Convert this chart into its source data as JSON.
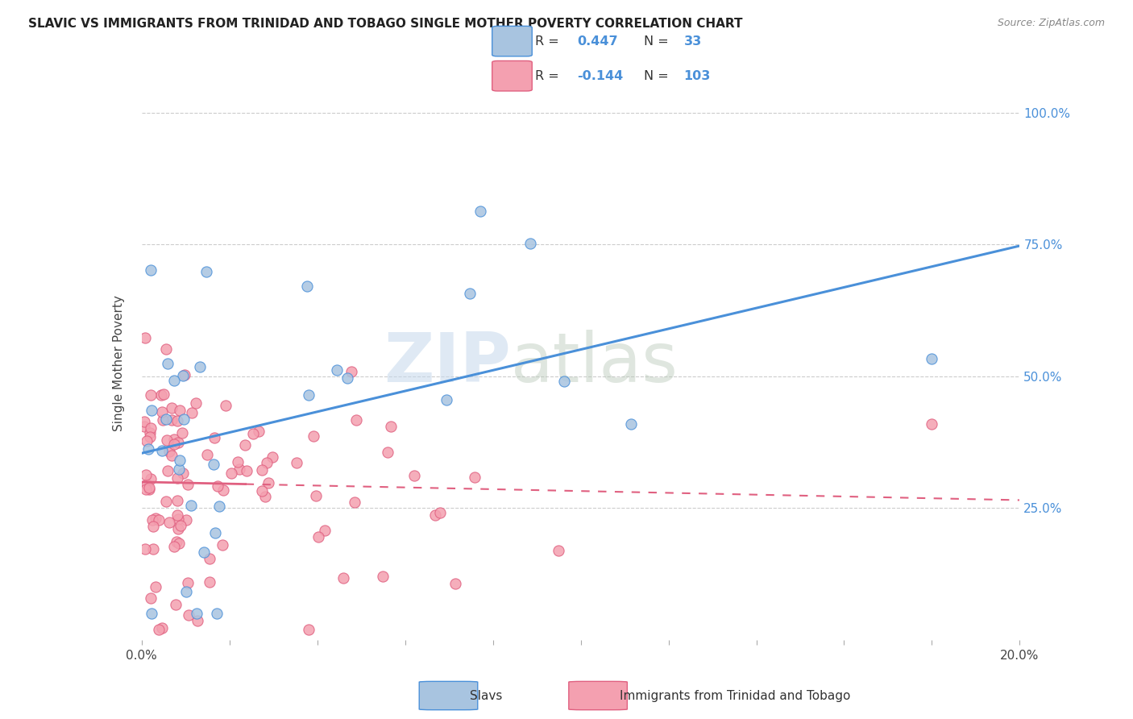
{
  "title": "SLAVIC VS IMMIGRANTS FROM TRINIDAD AND TOBAGO SINGLE MOTHER POVERTY CORRELATION CHART",
  "source": "Source: ZipAtlas.com",
  "ylabel": "Single Mother Poverty",
  "legend_label1": "Slavs",
  "legend_label2": "Immigrants from Trinidad and Tobago",
  "r1": 0.447,
  "n1": 33,
  "r2": -0.144,
  "n2": 103,
  "color_slavs_fill": "#a8c4e0",
  "color_slavs_edge": "#4a90d9",
  "color_tt_fill": "#f4a0b0",
  "color_tt_edge": "#e06080",
  "color_slavs_line": "#4a90d9",
  "color_tt_line": "#e06080",
  "background": "#ffffff",
  "watermark_zip": "ZIP",
  "watermark_atlas": "atlas",
  "ytick_positions": [
    0.25,
    0.5,
    0.75,
    1.0
  ],
  "ytick_labels": [
    "25.0%",
    "50.0%",
    "75.0%",
    "100.0%"
  ]
}
